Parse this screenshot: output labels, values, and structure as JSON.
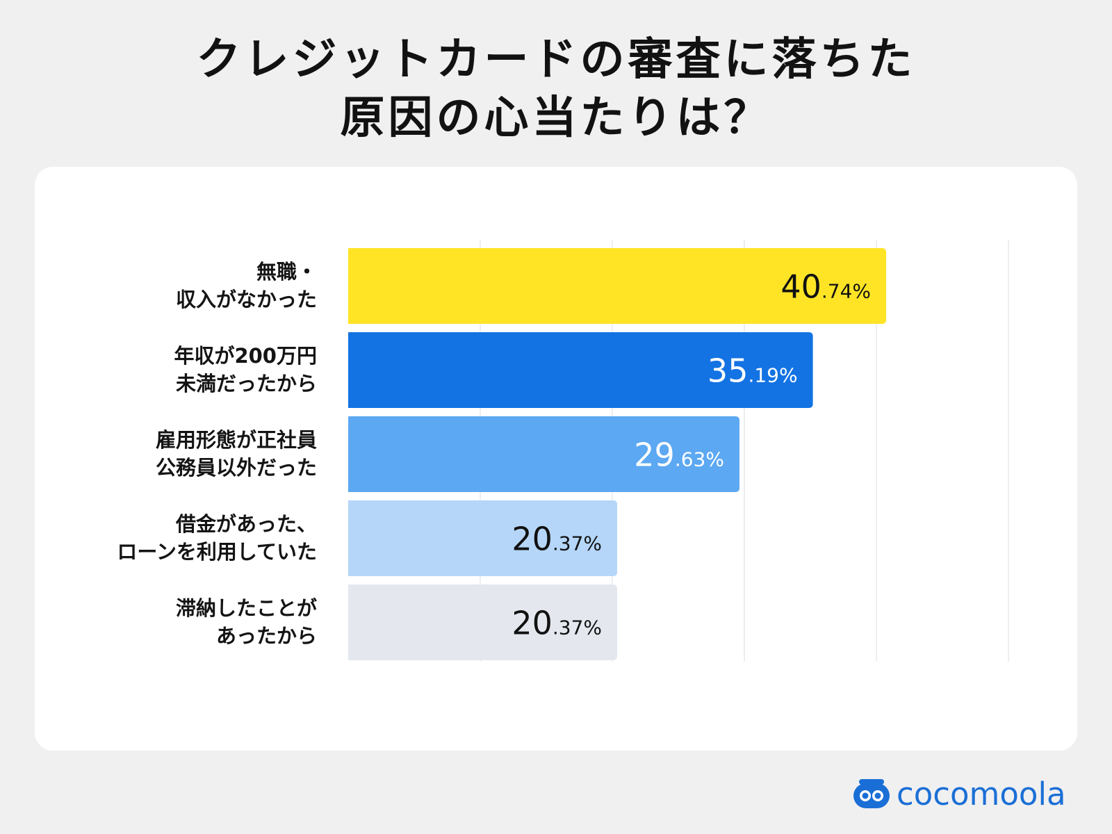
{
  "title": {
    "line1": "クレジットカードの審査に落ちた",
    "line2": "原因の心当たりは？"
  },
  "chart_data": {
    "type": "bar",
    "orientation": "horizontal",
    "categories": [
      [
        "無職・",
        "収入がなかった"
      ],
      [
        "年収が200万円",
        "未満だったから"
      ],
      [
        "雇用形態が正社員",
        "公務員以外だった"
      ],
      [
        "借金があった、",
        "ローンを利用していた"
      ],
      [
        "滞納したことが",
        "あったから"
      ]
    ],
    "values": [
      40.74,
      35.19,
      29.63,
      20.37,
      20.37
    ],
    "value_labels": [
      {
        "int": "40",
        "dec": ".74%"
      },
      {
        "int": "35",
        "dec": ".19%"
      },
      {
        "int": "29",
        "dec": ".63%"
      },
      {
        "int": "20",
        "dec": ".37%"
      },
      {
        "int": "20",
        "dec": ".37%"
      }
    ],
    "colors": [
      "#ffe426",
      "#1373e3",
      "#5ca8f2",
      "#b5d6f8",
      "#e4e8ee"
    ],
    "label_colors": [
      "#111111",
      "#ffffff",
      "#ffffff",
      "#111111",
      "#111111"
    ],
    "xlim": [
      0,
      50
    ],
    "grid": true
  },
  "brand": {
    "name": "cocomoola",
    "color": "#1a6fd6"
  }
}
